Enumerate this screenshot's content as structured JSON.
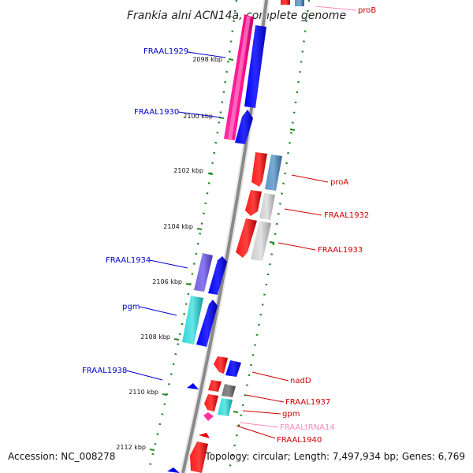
{
  "title": "Frankia alni ACN14a, complete genome",
  "footer": {
    "accession": "Accession: NC_008278",
    "topology": "Topology: circular; Length: 7,497,934 bp; Genes: 6,769"
  },
  "scale_labels": [
    "2098 kbp",
    "2100 kbp",
    "2102 kbp",
    "2104 kbp",
    "2106 kbp",
    "2108 kbp",
    "2110 kbp",
    "2112 kbp"
  ],
  "gene_labels": {
    "left": [
      "FRAAL1929",
      "FRAAL1930",
      "FRAAL1934",
      "pgm",
      "FRAAL1938"
    ],
    "right": [
      "proB",
      "proA",
      "FRAAL1932",
      "FRAAL1933",
      "nadD",
      "FRAAL1937",
      "gpm",
      "FRAALtRNA14",
      "FRAAL1940"
    ]
  },
  "colors": {
    "left_label": "#0000cc",
    "right_label": "#cc0000",
    "trna_label": "#ff88bb",
    "backbone": "#8a8a8a",
    "scale_tick": "#228822",
    "cds_blue": "#0000ee",
    "cds_red": "#ee0000",
    "magenta": "#ff1493",
    "cyan": "#22cccc",
    "purple": "#6655cc",
    "steel": "#4682b4",
    "grey": "#bbbbbb",
    "darkgrey": "#666666",
    "pink": "#ff66aa"
  }
}
